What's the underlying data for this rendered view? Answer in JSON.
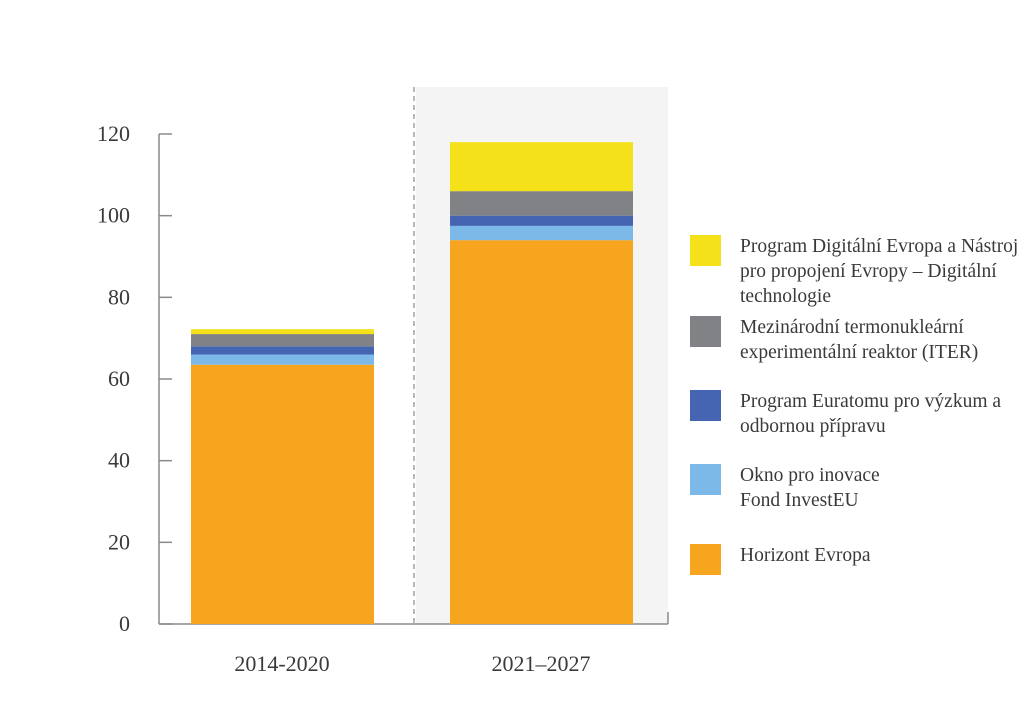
{
  "chart_data": {
    "type": "bar",
    "stacked": true,
    "title": "",
    "xlabel": "",
    "ylabel": "",
    "ylim": [
      0,
      120
    ],
    "yticks": [
      0,
      20,
      40,
      60,
      80,
      100,
      120
    ],
    "categories": [
      "2014-2020",
      "2021–2027"
    ],
    "series": [
      {
        "name": "Horizont Evropa",
        "color": "#F7A51E",
        "values": [
          63.5,
          94
        ]
      },
      {
        "name": "Okno pro inovace\nFond InvestEU",
        "color": "#7DB9E8",
        "values": [
          2.5,
          3.5
        ]
      },
      {
        "name": "Program Euratomu pro výzkum a\nodbornou přípravu",
        "color": "#4565B3",
        "values": [
          2,
          2.5
        ]
      },
      {
        "name": "Mezinárodní termonukleární\nexperimentální reaktor (ITER)",
        "color": "#808285",
        "values": [
          3,
          6
        ]
      },
      {
        "name": "Program Digitální Evropa a Nástroj\npro propojení Evropy – Digitální\ntechnologie",
        "color": "#F5E11A",
        "values": [
          1.2,
          12
        ]
      }
    ],
    "highlight_category": "2021–2027",
    "legend_position": "right",
    "grid": false
  }
}
